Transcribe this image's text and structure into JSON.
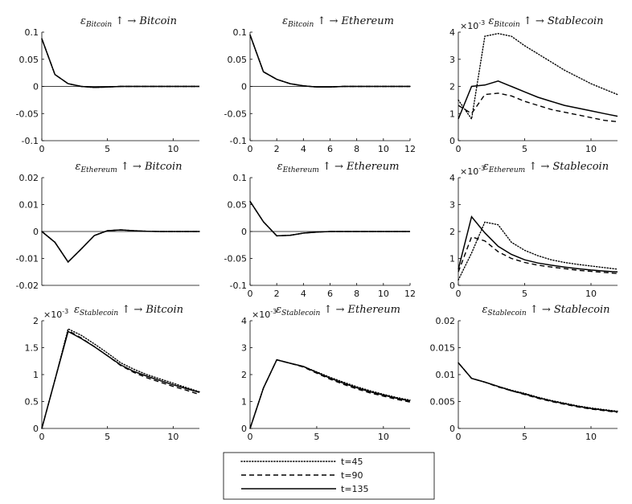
{
  "legend": [
    {
      "label": "t=45",
      "style": "dotted"
    },
    {
      "label": "t=90",
      "style": "dashed"
    },
    {
      "label": "t=135",
      "style": "solid"
    }
  ],
  "chart_data": [
    {
      "type": "line",
      "title": {
        "shock": "Bitcoin",
        "response": "Bitcoin"
      },
      "xlim": [
        0,
        12
      ],
      "ylim": [
        -0.1,
        0.1
      ],
      "xticks": [
        "0",
        "5",
        "10"
      ],
      "xtick_values": [
        0,
        5,
        10
      ],
      "yticks": [
        "-0.1",
        "-0.05",
        "0",
        "0.05",
        "0.1"
      ],
      "ytick_values": [
        -0.1,
        -0.05,
        0,
        0.05,
        0.1
      ],
      "zero_line": true,
      "exponent": "",
      "x": [
        0,
        1,
        2,
        3,
        4,
        5,
        6,
        7,
        8,
        9,
        10,
        11,
        12
      ],
      "series": [
        {
          "name": "t=45",
          "values": [
            0.088,
            0.022,
            0.005,
            0.0,
            -0.002,
            -0.001,
            0,
            0,
            0,
            0,
            0,
            0,
            0
          ]
        },
        {
          "name": "t=90",
          "values": [
            0.088,
            0.022,
            0.005,
            0.0,
            -0.002,
            -0.001,
            0,
            0,
            0,
            0,
            0,
            0,
            0
          ]
        },
        {
          "name": "t=135",
          "values": [
            0.088,
            0.022,
            0.005,
            0.0,
            -0.002,
            -0.001,
            0,
            0,
            0,
            0,
            0,
            0,
            0
          ]
        }
      ]
    },
    {
      "type": "line",
      "title": {
        "shock": "Bitcoin",
        "response": "Ethereum"
      },
      "xlim": [
        0,
        12
      ],
      "ylim": [
        -0.1,
        0.1
      ],
      "xticks": [
        "0",
        "2",
        "4",
        "6",
        "8",
        "10",
        "12"
      ],
      "xtick_values": [
        0,
        2,
        4,
        6,
        8,
        10,
        12
      ],
      "yticks": [
        "-0.1",
        "-0.05",
        "0",
        "0.05",
        "0.1"
      ],
      "ytick_values": [
        -0.1,
        -0.05,
        0,
        0.05,
        0.1
      ],
      "zero_line": true,
      "exponent": "",
      "x": [
        0,
        1,
        2,
        3,
        4,
        5,
        6,
        7,
        8,
        9,
        10,
        11,
        12
      ],
      "series": [
        {
          "name": "t=45",
          "values": [
            0.095,
            0.027,
            0.013,
            0.005,
            0.001,
            -0.001,
            -0.001,
            0,
            0,
            0,
            0,
            0,
            0
          ]
        },
        {
          "name": "t=90",
          "values": [
            0.095,
            0.027,
            0.013,
            0.005,
            0.001,
            -0.001,
            -0.001,
            0,
            0,
            0,
            0,
            0,
            0
          ]
        },
        {
          "name": "t=135",
          "values": [
            0.095,
            0.027,
            0.013,
            0.005,
            0.001,
            -0.001,
            -0.001,
            0,
            0,
            0,
            0,
            0,
            0
          ]
        }
      ]
    },
    {
      "type": "line",
      "title": {
        "shock": "Bitcoin",
        "response": "Stablecoin"
      },
      "xlim": [
        0,
        12
      ],
      "ylim": [
        0,
        4
      ],
      "xticks": [
        "0",
        "5",
        "10"
      ],
      "xtick_values": [
        0,
        5,
        10
      ],
      "yticks": [
        "0",
        "1",
        "2",
        "3",
        "4"
      ],
      "ytick_values": [
        0,
        1,
        2,
        3,
        4
      ],
      "zero_line": false,
      "exponent": "×10",
      "exponent_power": "-3",
      "x": [
        0,
        1,
        2,
        3,
        4,
        5,
        6,
        7,
        8,
        9,
        10,
        11,
        12
      ],
      "series": [
        {
          "name": "t=45",
          "values": [
            1.5,
            0.8,
            3.85,
            3.95,
            3.85,
            3.5,
            3.2,
            2.9,
            2.6,
            2.35,
            2.1,
            1.9,
            1.7
          ]
        },
        {
          "name": "t=90",
          "values": [
            1.3,
            1.0,
            1.7,
            1.75,
            1.65,
            1.45,
            1.3,
            1.15,
            1.05,
            0.95,
            0.85,
            0.75,
            0.7
          ]
        },
        {
          "name": "t=135",
          "values": [
            0.8,
            2.0,
            2.05,
            2.2,
            2.0,
            1.8,
            1.6,
            1.45,
            1.3,
            1.2,
            1.1,
            1.0,
            0.9
          ]
        }
      ]
    },
    {
      "type": "line",
      "title": {
        "shock": "Ethereum",
        "response": "Bitcoin"
      },
      "xlim": [
        0,
        12
      ],
      "ylim": [
        -0.02,
        0.02
      ],
      "xticks": [],
      "xtick_values": [],
      "yticks": [
        "-0.02",
        "-0.01",
        "0",
        "0.01",
        "0.02"
      ],
      "ytick_values": [
        -0.02,
        -0.01,
        0,
        0.01,
        0.02
      ],
      "zero_line": true,
      "exponent": "",
      "x": [
        0,
        1,
        2,
        3,
        4,
        5,
        6,
        7,
        8,
        9,
        10,
        11,
        12
      ],
      "series": [
        {
          "name": "t=45",
          "values": [
            0,
            -0.004,
            -0.0113,
            -0.0065,
            -0.0015,
            0.0003,
            0.0006,
            0.0003,
            0.0001,
            0,
            0,
            0,
            0
          ]
        },
        {
          "name": "t=90",
          "values": [
            0,
            -0.004,
            -0.0113,
            -0.0065,
            -0.0015,
            0.0003,
            0.0006,
            0.0003,
            0.0001,
            0,
            0,
            0,
            0
          ]
        },
        {
          "name": "t=135",
          "values": [
            0,
            -0.004,
            -0.0113,
            -0.0065,
            -0.0015,
            0.0003,
            0.0006,
            0.0003,
            0.0001,
            0,
            0,
            0,
            0
          ]
        }
      ]
    },
    {
      "type": "line",
      "title": {
        "shock": "Ethereum",
        "response": "Ethereum"
      },
      "xlim": [
        0,
        12
      ],
      "ylim": [
        -0.1,
        0.1
      ],
      "xticks": [
        "0",
        "2",
        "4",
        "6",
        "8",
        "10",
        "12"
      ],
      "xtick_values": [
        0,
        2,
        4,
        6,
        8,
        10,
        12
      ],
      "yticks": [
        "-0.1",
        "-0.05",
        "0",
        "0.05",
        "0.1"
      ],
      "ytick_values": [
        -0.1,
        -0.05,
        0,
        0.05,
        0.1
      ],
      "zero_line": true,
      "exponent": "",
      "x": [
        0,
        1,
        2,
        3,
        4,
        5,
        6,
        7,
        8,
        9,
        10,
        11,
        12
      ],
      "series": [
        {
          "name": "t=45",
          "values": [
            0.056,
            0.018,
            -0.008,
            -0.007,
            -0.003,
            -0.001,
            0,
            0,
            0,
            0,
            0,
            0,
            0
          ]
        },
        {
          "name": "t=90",
          "values": [
            0.056,
            0.018,
            -0.008,
            -0.007,
            -0.003,
            -0.001,
            0,
            0,
            0,
            0,
            0,
            0,
            0
          ]
        },
        {
          "name": "t=135",
          "values": [
            0.056,
            0.018,
            -0.008,
            -0.007,
            -0.003,
            -0.001,
            0,
            0,
            0,
            0,
            0,
            0,
            0
          ]
        }
      ]
    },
    {
      "type": "line",
      "title": {
        "shock": "Ethereum",
        "response": "Stablecoin"
      },
      "xlim": [
        0,
        12
      ],
      "ylim": [
        0,
        4
      ],
      "xticks": [
        "0",
        "5",
        "10"
      ],
      "xtick_values": [
        0,
        5,
        10
      ],
      "yticks": [
        "0",
        "1",
        "2",
        "3",
        "4"
      ],
      "ytick_values": [
        0,
        1,
        2,
        3,
        4
      ],
      "zero_line": false,
      "exponent": "×10",
      "exponent_power": "-3",
      "x": [
        0,
        1,
        2,
        3,
        4,
        5,
        6,
        7,
        8,
        9,
        10,
        11,
        12
      ],
      "series": [
        {
          "name": "t=45",
          "values": [
            0.2,
            1.2,
            2.35,
            2.25,
            1.6,
            1.3,
            1.1,
            0.95,
            0.85,
            0.78,
            0.72,
            0.66,
            0.6
          ]
        },
        {
          "name": "t=90",
          "values": [
            0.5,
            1.8,
            1.65,
            1.25,
            1.0,
            0.85,
            0.75,
            0.68,
            0.62,
            0.56,
            0.52,
            0.48,
            0.44
          ]
        },
        {
          "name": "t=135",
          "values": [
            0.6,
            2.55,
            1.95,
            1.45,
            1.15,
            0.95,
            0.83,
            0.75,
            0.68,
            0.62,
            0.57,
            0.53,
            0.5
          ]
        }
      ]
    },
    {
      "type": "line",
      "title": {
        "shock": "Stablecoin",
        "response": "Bitcoin"
      },
      "xlim": [
        0,
        12
      ],
      "ylim": [
        0,
        2
      ],
      "xticks": [
        "0",
        "5",
        "10"
      ],
      "xtick_values": [
        0,
        5,
        10
      ],
      "yticks": [
        "0",
        "0.5",
        "1",
        "1.5",
        "2"
      ],
      "ytick_values": [
        0,
        0.5,
        1,
        1.5,
        2
      ],
      "zero_line": false,
      "exponent": "×10",
      "exponent_power": "-3",
      "x": [
        0,
        1,
        2,
        3,
        4,
        5,
        6,
        7,
        8,
        9,
        10,
        11,
        12
      ],
      "series": [
        {
          "name": "t=45",
          "values": [
            0,
            0.9,
            1.85,
            1.73,
            1.57,
            1.4,
            1.22,
            1.1,
            1.0,
            0.92,
            0.84,
            0.76,
            0.68
          ]
        },
        {
          "name": "t=90",
          "values": [
            0,
            0.9,
            1.82,
            1.68,
            1.52,
            1.35,
            1.17,
            1.04,
            0.94,
            0.86,
            0.78,
            0.71,
            0.63
          ]
        },
        {
          "name": "t=135",
          "values": [
            0,
            0.9,
            1.8,
            1.67,
            1.52,
            1.35,
            1.18,
            1.06,
            0.97,
            0.89,
            0.81,
            0.74,
            0.67
          ]
        }
      ]
    },
    {
      "type": "line",
      "title": {
        "shock": "Stablecoin",
        "response": "Ethereum"
      },
      "xlim": [
        0,
        12
      ],
      "ylim": [
        0,
        4
      ],
      "xticks": [
        "0",
        "5",
        "10"
      ],
      "xtick_values": [
        0,
        5,
        10
      ],
      "yticks": [
        "0",
        "1",
        "2",
        "3",
        "4"
      ],
      "ytick_values": [
        0,
        1,
        2,
        3,
        4
      ],
      "zero_line": false,
      "exponent": "×10",
      "exponent_power": "-3",
      "x": [
        0,
        1,
        2,
        3,
        4,
        5,
        6,
        7,
        8,
        9,
        10,
        11,
        12
      ],
      "series": [
        {
          "name": "t=45",
          "values": [
            0,
            1.5,
            2.55,
            2.42,
            2.3,
            2.1,
            1.9,
            1.72,
            1.55,
            1.4,
            1.27,
            1.15,
            1.05
          ]
        },
        {
          "name": "t=90",
          "values": [
            0,
            1.5,
            2.55,
            2.42,
            2.28,
            2.05,
            1.83,
            1.64,
            1.47,
            1.32,
            1.2,
            1.08,
            0.98
          ]
        },
        {
          "name": "t=135",
          "values": [
            0,
            1.5,
            2.55,
            2.42,
            2.3,
            2.08,
            1.87,
            1.68,
            1.51,
            1.36,
            1.24,
            1.12,
            1.02
          ]
        }
      ]
    },
    {
      "type": "line",
      "title": {
        "shock": "Stablecoin",
        "response": "Stablecoin"
      },
      "xlim": [
        0,
        12
      ],
      "ylim": [
        0,
        0.02
      ],
      "xticks": [
        "0",
        "5",
        "10"
      ],
      "xtick_values": [
        0,
        5,
        10
      ],
      "yticks": [
        "0",
        "0.005",
        "0.01",
        "0.015",
        "0.02"
      ],
      "ytick_values": [
        0,
        0.005,
        0.01,
        0.015,
        0.02
      ],
      "zero_line": false,
      "exponent": "",
      "x": [
        0,
        1,
        2,
        3,
        4,
        5,
        6,
        7,
        8,
        9,
        10,
        11,
        12
      ],
      "series": [
        {
          "name": "t=45",
          "values": [
            0.0122,
            0.0093,
            0.0086,
            0.0078,
            0.0071,
            0.0065,
            0.0058,
            0.0052,
            0.0047,
            0.0042,
            0.0038,
            0.0035,
            0.0032
          ]
        },
        {
          "name": "t=90",
          "values": [
            0.0122,
            0.0093,
            0.0086,
            0.0077,
            0.007,
            0.0063,
            0.0056,
            0.005,
            0.0045,
            0.004,
            0.0036,
            0.0033,
            0.003
          ]
        },
        {
          "name": "t=135",
          "values": [
            0.0122,
            0.0093,
            0.0086,
            0.0078,
            0.007,
            0.0064,
            0.0057,
            0.0051,
            0.0046,
            0.0041,
            0.0037,
            0.0034,
            0.0031
          ]
        }
      ]
    }
  ]
}
